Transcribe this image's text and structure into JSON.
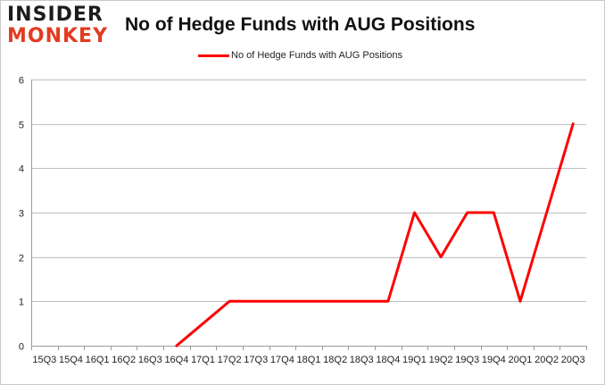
{
  "logo": {
    "line1": "INSIDER",
    "line2": "MONKEY"
  },
  "chart_data": {
    "type": "line",
    "title": "No of Hedge Funds with AUG Positions",
    "xlabel": "",
    "ylabel": "",
    "ylim": [
      0,
      6
    ],
    "yticks": [
      0,
      1,
      2,
      3,
      4,
      5,
      6
    ],
    "grid": true,
    "legend_position": "top-center",
    "categories": [
      "15Q3",
      "15Q4",
      "16Q1",
      "16Q2",
      "16Q3",
      "16Q4",
      "17Q1",
      "17Q2",
      "17Q3",
      "17Q4",
      "18Q1",
      "18Q2",
      "18Q3",
      "18Q4",
      "19Q1",
      "19Q2",
      "19Q3",
      "19Q4",
      "20Q1",
      "20Q2",
      "20Q3"
    ],
    "series": [
      {
        "name": "No of Hedge Funds with AUG Positions",
        "color": "#ff0000",
        "values": [
          null,
          null,
          null,
          null,
          null,
          0,
          0.5,
          1,
          1,
          1,
          1,
          1,
          1,
          1,
          3,
          2,
          3,
          3,
          1,
          3,
          5
        ]
      }
    ]
  }
}
